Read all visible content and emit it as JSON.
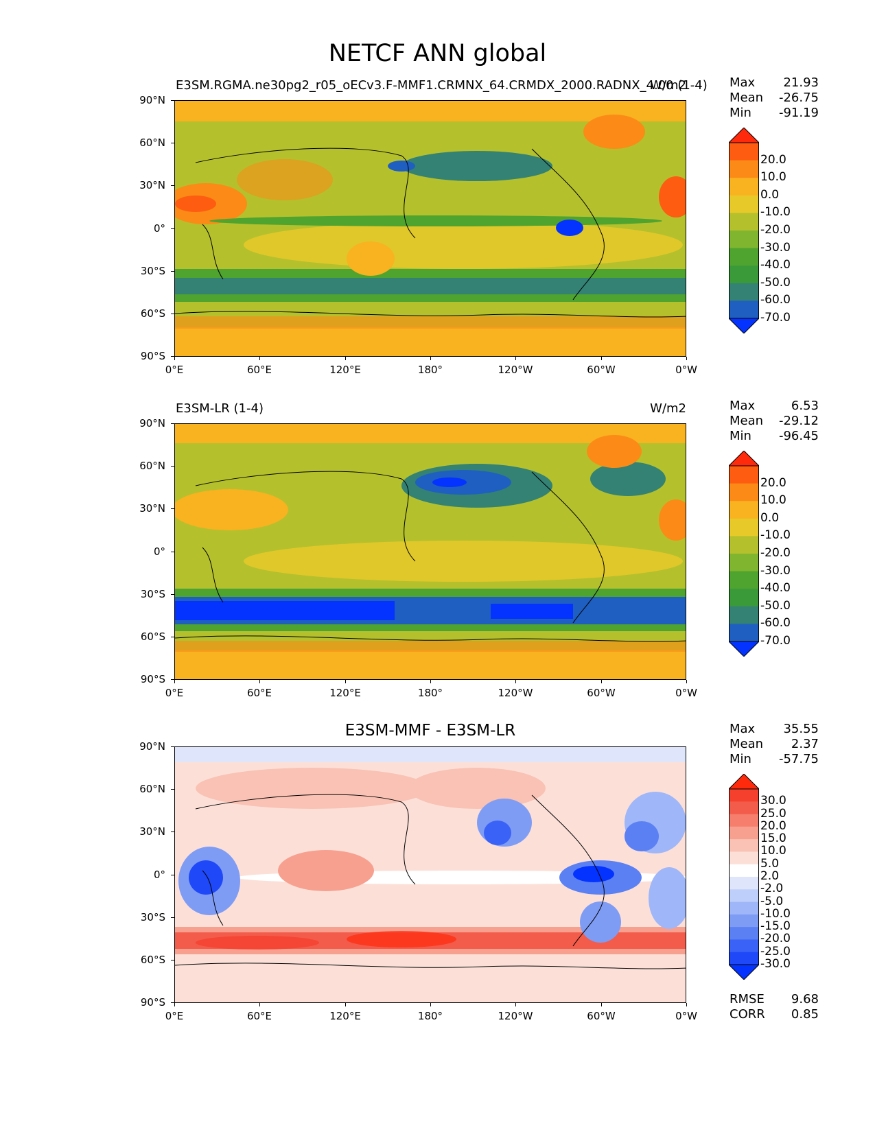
{
  "figure": {
    "title": "NETCF ANN global"
  },
  "axes": {
    "lat_labels": [
      "90°N",
      "60°N",
      "30°N",
      "0°",
      "30°S",
      "60°S",
      "90°S"
    ],
    "lon_labels": [
      "0°E",
      "60°E",
      "120°E",
      "180°",
      "120°W",
      "60°W",
      "0°W"
    ]
  },
  "panels": [
    {
      "title_left": "E3SM.RGMA.ne30pg2_r05_oECv3.F-MMF1.CRMNX_64.CRMDX_2000.RADNX_4.00 (1-4)",
      "title_right": "W/m2",
      "title_center": "",
      "stats": [
        {
          "label": "Max",
          "value": "21.93"
        },
        {
          "label": "Mean",
          "value": "-26.75"
        },
        {
          "label": "Min",
          "value": "-91.19"
        }
      ],
      "colorbar_ticks": [
        "20.0",
        "10.0",
        "0.0",
        "-10.0",
        "-20.0",
        "-30.0",
        "-40.0",
        "-50.0",
        "-60.0",
        "-70.0"
      ],
      "colorbar_colors": [
        "#ff2a0c",
        "#fd5c11",
        "#fb8b16",
        "#f9b220",
        "#e8c92a",
        "#b4c12c",
        "#7fb52f",
        "#4fa32f",
        "#3a9a3a",
        "#338274",
        "#1f5fc1",
        "#0433ff"
      ],
      "extra": []
    },
    {
      "title_left": "E3SM-LR (1-4)",
      "title_right": "W/m2",
      "title_center": "",
      "stats": [
        {
          "label": "Max",
          "value": "6.53"
        },
        {
          "label": "Mean",
          "value": "-29.12"
        },
        {
          "label": "Min",
          "value": "-96.45"
        }
      ],
      "colorbar_ticks": [
        "20.0",
        "10.0",
        "0.0",
        "-10.0",
        "-20.0",
        "-30.0",
        "-40.0",
        "-50.0",
        "-60.0",
        "-70.0"
      ],
      "colorbar_colors": [
        "#ff2a0c",
        "#fd5c11",
        "#fb8b16",
        "#f9b220",
        "#e8c92a",
        "#b4c12c",
        "#7fb52f",
        "#4fa32f",
        "#3a9a3a",
        "#338274",
        "#1f5fc1",
        "#0433ff"
      ],
      "extra": []
    },
    {
      "title_left": "",
      "title_right": "",
      "title_center": "E3SM-MMF - E3SM-LR",
      "stats": [
        {
          "label": "Max",
          "value": "35.55"
        },
        {
          "label": "Mean",
          "value": "2.37"
        },
        {
          "label": "Min",
          "value": "-57.75"
        }
      ],
      "colorbar_ticks": [
        "30.0",
        "25.0",
        "20.0",
        "15.0",
        "10.0",
        "5.0",
        "2.0",
        "-2.0",
        "-5.0",
        "-10.0",
        "-15.0",
        "-20.0",
        "-25.0",
        "-30.0"
      ],
      "colorbar_colors": [
        "#ff2a0c",
        "#f5402e",
        "#f35b4a",
        "#f57e6c",
        "#f7a08f",
        "#f9c2b4",
        "#fce0d8",
        "#ffffff",
        "#dfe6fc",
        "#bfcffb",
        "#9fb6f8",
        "#7f9cf5",
        "#5b80f3",
        "#3a62f6",
        "#1e48f8",
        "#0433ff"
      ],
      "extra": [
        {
          "label": "RMSE",
          "value": "9.68"
        },
        {
          "label": "CORR",
          "value": "0.85"
        }
      ]
    }
  ]
}
